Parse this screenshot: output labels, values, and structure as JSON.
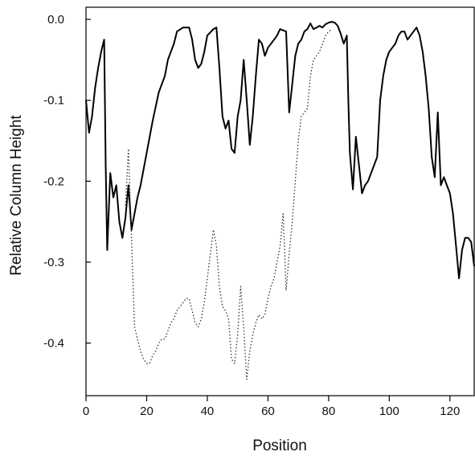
{
  "chart_data": {
    "type": "line",
    "title": "",
    "xlabel": "Position",
    "ylabel": "Relative Column Height",
    "xlim": [
      0,
      128
    ],
    "ylim": [
      -0.465,
      0.015
    ],
    "x_ticks": [
      0,
      20,
      40,
      60,
      80,
      100,
      120
    ],
    "x_tick_labels": [
      "0",
      "20",
      "40",
      "60",
      "80",
      "100",
      "120"
    ],
    "y_ticks": [
      0.0,
      -0.1,
      -0.2,
      -0.3,
      -0.4
    ],
    "y_tick_labels": [
      "0.0",
      "-0.1",
      "-0.2",
      "-0.3",
      "-0.4"
    ],
    "grid": false,
    "legend": "none",
    "series": [
      {
        "style": "solid",
        "color": "#000000",
        "points": [
          [
            0,
            -0.1
          ],
          [
            1,
            -0.14
          ],
          [
            2,
            -0.12
          ],
          [
            3,
            -0.085
          ],
          [
            4,
            -0.06
          ],
          [
            5,
            -0.04
          ],
          [
            6,
            -0.025
          ],
          [
            6.5,
            -0.18
          ],
          [
            7,
            -0.285
          ],
          [
            8,
            -0.19
          ],
          [
            9,
            -0.22
          ],
          [
            10,
            -0.205
          ],
          [
            11,
            -0.25
          ],
          [
            12,
            -0.27
          ],
          [
            13,
            -0.245
          ],
          [
            14,
            -0.205
          ],
          [
            15,
            -0.26
          ],
          [
            16,
            -0.24
          ],
          [
            17,
            -0.22
          ],
          [
            18,
            -0.205
          ],
          [
            20,
            -0.165
          ],
          [
            22,
            -0.125
          ],
          [
            24,
            -0.09
          ],
          [
            26,
            -0.07
          ],
          [
            27,
            -0.05
          ],
          [
            29,
            -0.03
          ],
          [
            30,
            -0.015
          ],
          [
            32,
            -0.01
          ],
          [
            34,
            -0.01
          ],
          [
            35,
            -0.025
          ],
          [
            36,
            -0.05
          ],
          [
            37,
            -0.06
          ],
          [
            38,
            -0.055
          ],
          [
            39,
            -0.04
          ],
          [
            40,
            -0.02
          ],
          [
            42,
            -0.012
          ],
          [
            43,
            -0.01
          ],
          [
            44,
            -0.06
          ],
          [
            45,
            -0.12
          ],
          [
            46,
            -0.135
          ],
          [
            47,
            -0.125
          ],
          [
            48,
            -0.16
          ],
          [
            49,
            -0.165
          ],
          [
            50,
            -0.12
          ],
          [
            51,
            -0.1
          ],
          [
            52,
            -0.05
          ],
          [
            53,
            -0.1
          ],
          [
            54,
            -0.155
          ],
          [
            55,
            -0.12
          ],
          [
            56,
            -0.07
          ],
          [
            57,
            -0.025
          ],
          [
            58,
            -0.03
          ],
          [
            59,
            -0.045
          ],
          [
            60,
            -0.035
          ],
          [
            62,
            -0.025
          ],
          [
            63,
            -0.02
          ],
          [
            64,
            -0.012
          ],
          [
            66,
            -0.015
          ],
          [
            67,
            -0.115
          ],
          [
            68,
            -0.08
          ],
          [
            69,
            -0.045
          ],
          [
            70,
            -0.03
          ],
          [
            71,
            -0.025
          ],
          [
            72,
            -0.015
          ],
          [
            73,
            -0.012
          ],
          [
            74,
            -0.005
          ],
          [
            75,
            -0.012
          ],
          [
            76,
            -0.01
          ],
          [
            77,
            -0.008
          ],
          [
            78,
            -0.01
          ],
          [
            79,
            -0.006
          ],
          [
            80,
            -0.004
          ],
          [
            81,
            -0.003
          ],
          [
            82,
            -0.004
          ],
          [
            83,
            -0.008
          ],
          [
            84,
            -0.018
          ],
          [
            85,
            -0.03
          ],
          [
            86,
            -0.02
          ],
          [
            86.5,
            -0.1
          ],
          [
            87,
            -0.165
          ],
          [
            88,
            -0.21
          ],
          [
            89,
            -0.145
          ],
          [
            90,
            -0.18
          ],
          [
            91,
            -0.215
          ],
          [
            92,
            -0.205
          ],
          [
            93,
            -0.2
          ],
          [
            94,
            -0.19
          ],
          [
            96,
            -0.17
          ],
          [
            97,
            -0.1
          ],
          [
            98,
            -0.07
          ],
          [
            99,
            -0.05
          ],
          [
            100,
            -0.04
          ],
          [
            102,
            -0.03
          ],
          [
            103,
            -0.02
          ],
          [
            104,
            -0.015
          ],
          [
            105,
            -0.015
          ],
          [
            106,
            -0.025
          ],
          [
            107,
            -0.02
          ],
          [
            108,
            -0.015
          ],
          [
            109,
            -0.01
          ],
          [
            110,
            -0.02
          ],
          [
            111,
            -0.04
          ],
          [
            112,
            -0.07
          ],
          [
            113,
            -0.11
          ],
          [
            114,
            -0.17
          ],
          [
            115,
            -0.195
          ],
          [
            116,
            -0.115
          ],
          [
            117,
            -0.205
          ],
          [
            118,
            -0.195
          ],
          [
            119,
            -0.205
          ],
          [
            120,
            -0.215
          ],
          [
            121,
            -0.24
          ],
          [
            122,
            -0.28
          ],
          [
            123,
            -0.32
          ],
          [
            124,
            -0.285
          ],
          [
            125,
            -0.27
          ],
          [
            126,
            -0.27
          ],
          [
            127,
            -0.275
          ],
          [
            128,
            -0.305
          ]
        ]
      },
      {
        "style": "dotted",
        "color": "#333333",
        "points": [
          [
            13,
            -0.23
          ],
          [
            14,
            -0.16
          ],
          [
            15,
            -0.27
          ],
          [
            16,
            -0.38
          ],
          [
            17,
            -0.395
          ],
          [
            18,
            -0.41
          ],
          [
            19,
            -0.42
          ],
          [
            20,
            -0.425
          ],
          [
            21,
            -0.425
          ],
          [
            22,
            -0.415
          ],
          [
            23,
            -0.41
          ],
          [
            24,
            -0.4
          ],
          [
            25,
            -0.395
          ],
          [
            26,
            -0.395
          ],
          [
            27,
            -0.385
          ],
          [
            28,
            -0.375
          ],
          [
            29,
            -0.37
          ],
          [
            30,
            -0.36
          ],
          [
            31,
            -0.355
          ],
          [
            32,
            -0.35
          ],
          [
            33,
            -0.345
          ],
          [
            34,
            -0.345
          ],
          [
            35,
            -0.36
          ],
          [
            36,
            -0.375
          ],
          [
            37,
            -0.38
          ],
          [
            38,
            -0.37
          ],
          [
            39,
            -0.35
          ],
          [
            40,
            -0.32
          ],
          [
            41,
            -0.29
          ],
          [
            42,
            -0.26
          ],
          [
            43,
            -0.28
          ],
          [
            44,
            -0.33
          ],
          [
            45,
            -0.355
          ],
          [
            46,
            -0.36
          ],
          [
            47,
            -0.37
          ],
          [
            48,
            -0.42
          ],
          [
            49,
            -0.425
          ],
          [
            50,
            -0.39
          ],
          [
            51,
            -0.33
          ],
          [
            52,
            -0.38
          ],
          [
            53,
            -0.445
          ],
          [
            54,
            -0.41
          ],
          [
            55,
            -0.39
          ],
          [
            56,
            -0.375
          ],
          [
            57,
            -0.365
          ],
          [
            58,
            -0.37
          ],
          [
            59,
            -0.365
          ],
          [
            60,
            -0.345
          ],
          [
            61,
            -0.33
          ],
          [
            62,
            -0.32
          ],
          [
            63,
            -0.3
          ],
          [
            64,
            -0.28
          ],
          [
            65,
            -0.24
          ],
          [
            66,
            -0.335
          ],
          [
            67,
            -0.29
          ],
          [
            68,
            -0.25
          ],
          [
            69,
            -0.2
          ],
          [
            70,
            -0.15
          ],
          [
            71,
            -0.12
          ],
          [
            72,
            -0.115
          ],
          [
            73,
            -0.11
          ],
          [
            74,
            -0.07
          ],
          [
            75,
            -0.05
          ],
          [
            76,
            -0.045
          ],
          [
            77,
            -0.04
          ],
          [
            78,
            -0.03
          ],
          [
            79,
            -0.02
          ],
          [
            80,
            -0.015
          ],
          [
            81,
            -0.012
          ]
        ]
      }
    ]
  }
}
